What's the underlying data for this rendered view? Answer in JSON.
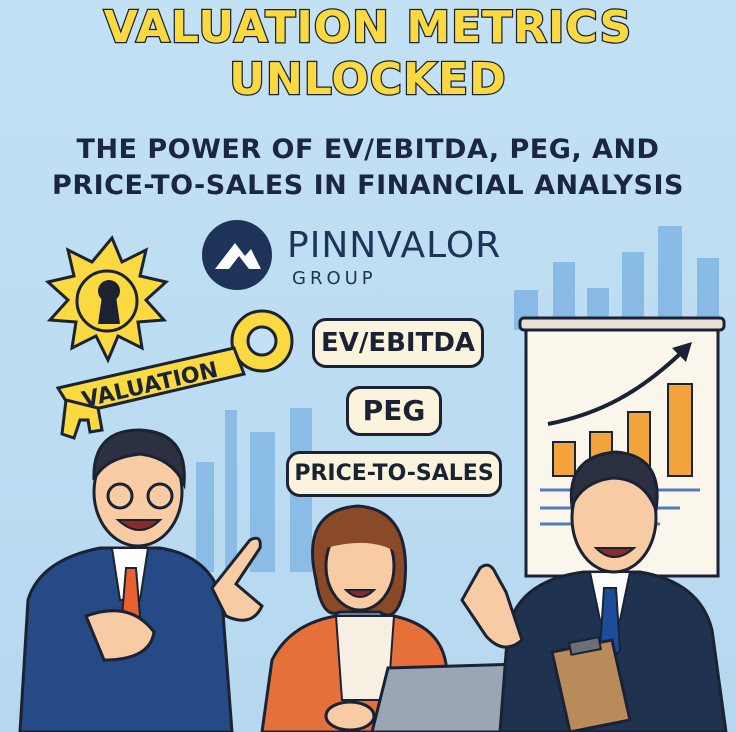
{
  "headline": {
    "line1": "VALUATION METRICS",
    "line2": "UNLOCKED"
  },
  "subheadline": {
    "line1": "THE POWER OF EV/EBITDA, PEG, AND",
    "line2": "PRICE-TO-SALES IN FINANCIAL ANALYSIS"
  },
  "logo": {
    "name": "PINNVALOR",
    "subname": "GROUP"
  },
  "key_label": "VALUATION",
  "metrics": [
    "EV/EBITDA",
    "PEG",
    "PRICE-TO-SALES"
  ],
  "colors": {
    "background": "#bcdcf1",
    "headline": "#fbd940",
    "navy": "#1d3357",
    "accent_orange": "#f2a33a",
    "suit_blue": "#254a86"
  },
  "icons": [
    "keyhole-burst-icon",
    "golden-key-icon",
    "trend-arrow-icon",
    "laptop-icon",
    "clipboard-icon"
  ]
}
